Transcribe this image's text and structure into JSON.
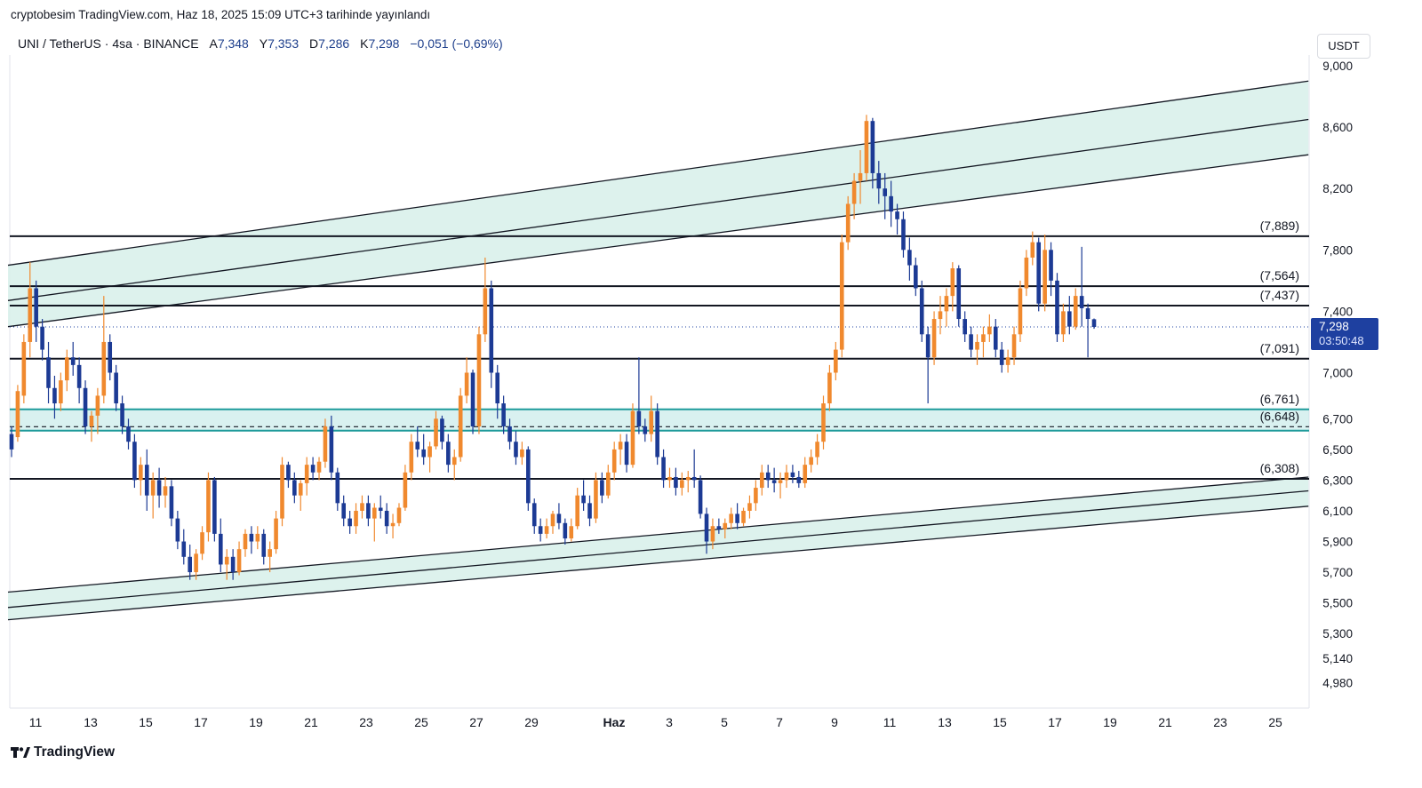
{
  "header": {
    "publish_line": "cryptobesim TradingView.com, Haz 18, 2025 15:09 UTC+3 tarihinde yayınlandı"
  },
  "legend": {
    "symbol": "UNI / TetherUS · 4sa · BINANCE",
    "open_label": "A",
    "open_value": "7,348",
    "high_label": "Y",
    "high_value": "7,353",
    "low_label": "D",
    "low_value": "7,286",
    "close_label": "K",
    "close_value": "7,298",
    "change": "−0,051 (−0,69%)"
  },
  "currency": "USDT",
  "footer": {
    "brand": "TradingView",
    "logo_icon": "tradingview-logo-icon"
  },
  "colors": {
    "up": "#f0892e",
    "down": "#1c3a94",
    "channel_fill": "#d7f0ea",
    "zone_fill": "#b9e6e3",
    "zone_border": "#1d9a9a",
    "price_tag": "#1e40a0"
  },
  "chart_data": {
    "type": "candlestick",
    "title": "UNI / TetherUS 4h",
    "ylim": [
      4.9,
      9.05
    ],
    "y_axis_labels": [
      "9,000",
      "8,600",
      "8,200",
      "7,800",
      "7,400",
      "7,000",
      "6,700",
      "6,500",
      "6,300",
      "6,100",
      "5,900",
      "5,700",
      "5,500",
      "5,300",
      "5,140",
      "4,980"
    ],
    "y_axis_values": [
      9.0,
      8.6,
      8.2,
      7.8,
      7.4,
      7.0,
      6.7,
      6.5,
      6.3,
      6.1,
      5.9,
      5.7,
      5.5,
      5.3,
      5.14,
      4.98
    ],
    "x_ticks": [
      {
        "day": 11,
        "label": "11"
      },
      {
        "day": 13,
        "label": "13"
      },
      {
        "day": 15,
        "label": "15"
      },
      {
        "day": 17,
        "label": "17"
      },
      {
        "day": 19,
        "label": "19"
      },
      {
        "day": 21,
        "label": "21"
      },
      {
        "day": 23,
        "label": "23"
      },
      {
        "day": 25,
        "label": "25"
      },
      {
        "day": 27,
        "label": "27"
      },
      {
        "day": 29,
        "label": "29"
      },
      {
        "day": 32,
        "label": "Haz",
        "bold": true
      },
      {
        "day": 34,
        "label": "3"
      },
      {
        "day": 36,
        "label": "5"
      },
      {
        "day": 38,
        "label": "7"
      },
      {
        "day": 40,
        "label": "9"
      },
      {
        "day": 42,
        "label": "11"
      },
      {
        "day": 44,
        "label": "13"
      },
      {
        "day": 46,
        "label": "15"
      },
      {
        "day": 48,
        "label": "17"
      },
      {
        "day": 50,
        "label": "19"
      },
      {
        "day": 52,
        "label": "21"
      },
      {
        "day": 54,
        "label": "23"
      },
      {
        "day": 56,
        "label": "25"
      }
    ],
    "horizontal_levels": [
      {
        "value": 7.889,
        "label": "(7,889)"
      },
      {
        "value": 7.564,
        "label": "(7,564)"
      },
      {
        "value": 7.437,
        "label": "(7,437)"
      },
      {
        "value": 7.091,
        "label": "(7,091)"
      },
      {
        "value": 6.761,
        "label": "(6,761)",
        "zone_top": true
      },
      {
        "value": 6.648,
        "label": "(6,648)",
        "dashed": true
      },
      {
        "value": 6.308,
        "label": "(6,308)"
      }
    ],
    "support_zone": {
      "top": 6.761,
      "bottom": 6.622
    },
    "upper_channel": {
      "top": [
        {
          "day": 10,
          "value": 7.7
        },
        {
          "day": 57.2,
          "value": 8.9
        }
      ],
      "middle": [
        {
          "day": 10,
          "value": 7.47
        },
        {
          "day": 57.2,
          "value": 8.65
        }
      ],
      "bottom": [
        {
          "day": 10,
          "value": 7.3
        },
        {
          "day": 57.2,
          "value": 8.42
        }
      ]
    },
    "lower_channel": {
      "top": [
        {
          "day": 10,
          "value": 5.57
        },
        {
          "day": 57.2,
          "value": 6.32
        }
      ],
      "middle": [
        {
          "day": 10,
          "value": 5.47
        },
        {
          "day": 57.2,
          "value": 6.23
        }
      ],
      "bottom": [
        {
          "day": 10,
          "value": 5.39
        },
        {
          "day": 57.2,
          "value": 6.13
        }
      ]
    },
    "last_price": {
      "value": 7.298,
      "label": "7,298",
      "countdown": "03:50:48"
    },
    "ohlc_4h": [
      [
        6.6,
        6.65,
        6.45,
        6.5
      ],
      [
        6.58,
        6.92,
        6.55,
        6.88
      ],
      [
        6.85,
        7.25,
        6.8,
        7.2
      ],
      [
        7.2,
        7.72,
        7.1,
        7.55
      ],
      [
        7.55,
        7.6,
        7.2,
        7.3
      ],
      [
        7.3,
        7.35,
        7.08,
        7.15
      ],
      [
        7.1,
        7.2,
        6.8,
        6.9
      ],
      [
        6.9,
        6.98,
        6.7,
        6.8
      ],
      [
        6.8,
        7.0,
        6.75,
        6.95
      ],
      [
        6.95,
        7.15,
        6.88,
        7.1
      ],
      [
        7.1,
        7.2,
        6.98,
        7.05
      ],
      [
        7.05,
        7.1,
        6.8,
        6.9
      ],
      [
        6.9,
        6.95,
        6.6,
        6.65
      ],
      [
        6.65,
        6.75,
        6.55,
        6.72
      ],
      [
        6.72,
        6.9,
        6.6,
        6.85
      ],
      [
        6.85,
        7.5,
        6.8,
        7.2
      ],
      [
        7.2,
        7.25,
        6.95,
        7.0
      ],
      [
        7.0,
        7.05,
        6.75,
        6.8
      ],
      [
        6.8,
        6.85,
        6.6,
        6.65
      ],
      [
        6.65,
        6.7,
        6.5,
        6.55
      ],
      [
        6.55,
        6.6,
        6.25,
        6.3
      ],
      [
        6.3,
        6.45,
        6.2,
        6.4
      ],
      [
        6.4,
        6.5,
        6.1,
        6.2
      ],
      [
        6.2,
        6.35,
        6.05,
        6.3
      ],
      [
        6.3,
        6.38,
        6.12,
        6.2
      ],
      [
        6.2,
        6.32,
        6.12,
        6.26
      ],
      [
        6.26,
        6.3,
        6.0,
        6.05
      ],
      [
        6.05,
        6.1,
        5.85,
        5.9
      ],
      [
        5.9,
        5.98,
        5.75,
        5.8
      ],
      [
        5.8,
        5.88,
        5.65,
        5.7
      ],
      [
        5.7,
        5.85,
        5.65,
        5.82
      ],
      [
        5.82,
        6.0,
        5.78,
        5.96
      ],
      [
        5.96,
        6.35,
        5.9,
        6.3
      ],
      [
        6.3,
        6.32,
        5.9,
        5.95
      ],
      [
        5.95,
        6.05,
        5.7,
        5.75
      ],
      [
        5.75,
        5.85,
        5.65,
        5.8
      ],
      [
        5.8,
        5.85,
        5.65,
        5.7
      ],
      [
        5.7,
        5.9,
        5.68,
        5.85
      ],
      [
        5.85,
        5.98,
        5.8,
        5.95
      ],
      [
        5.95,
        6.0,
        5.82,
        5.9
      ],
      [
        5.9,
        6.0,
        5.85,
        5.95
      ],
      [
        5.95,
        5.98,
        5.75,
        5.8
      ],
      [
        5.8,
        5.9,
        5.7,
        5.85
      ],
      [
        5.85,
        6.1,
        5.82,
        6.05
      ],
      [
        6.05,
        6.45,
        6.0,
        6.4
      ],
      [
        6.4,
        6.42,
        6.25,
        6.3
      ],
      [
        6.3,
        6.35,
        6.15,
        6.2
      ],
      [
        6.2,
        6.3,
        6.1,
        6.28
      ],
      [
        6.28,
        6.45,
        6.2,
        6.4
      ],
      [
        6.4,
        6.45,
        6.3,
        6.35
      ],
      [
        6.35,
        6.45,
        6.3,
        6.42
      ],
      [
        6.42,
        6.7,
        6.38,
        6.65
      ],
      [
        6.65,
        6.72,
        6.3,
        6.35
      ],
      [
        6.35,
        6.38,
        6.1,
        6.15
      ],
      [
        6.15,
        6.2,
        6.0,
        6.05
      ],
      [
        6.05,
        6.1,
        5.95,
        6.0
      ],
      [
        6.0,
        6.15,
        5.95,
        6.1
      ],
      [
        6.1,
        6.2,
        6.05,
        6.15
      ],
      [
        6.15,
        6.2,
        6.0,
        6.05
      ],
      [
        6.05,
        6.15,
        5.9,
        6.12
      ],
      [
        6.12,
        6.2,
        6.05,
        6.1
      ],
      [
        6.1,
        6.15,
        5.95,
        6.0
      ],
      [
        6.0,
        6.08,
        5.92,
        6.02
      ],
      [
        6.02,
        6.15,
        6.0,
        6.12
      ],
      [
        6.12,
        6.4,
        6.1,
        6.35
      ],
      [
        6.35,
        6.6,
        6.3,
        6.55
      ],
      [
        6.55,
        6.65,
        6.45,
        6.5
      ],
      [
        6.5,
        6.6,
        6.4,
        6.45
      ],
      [
        6.45,
        6.55,
        6.35,
        6.52
      ],
      [
        6.52,
        6.75,
        6.5,
        6.7
      ],
      [
        6.7,
        6.72,
        6.5,
        6.55
      ],
      [
        6.55,
        6.6,
        6.35,
        6.4
      ],
      [
        6.4,
        6.5,
        6.3,
        6.45
      ],
      [
        6.45,
        6.9,
        6.42,
        6.85
      ],
      [
        6.85,
        7.1,
        6.8,
        7.0
      ],
      [
        7.0,
        7.02,
        6.6,
        6.65
      ],
      [
        6.65,
        7.3,
        6.6,
        7.25
      ],
      [
        7.25,
        7.75,
        7.2,
        7.55
      ],
      [
        7.55,
        7.6,
        6.9,
        7.0
      ],
      [
        7.0,
        7.05,
        6.7,
        6.8
      ],
      [
        6.8,
        6.85,
        6.6,
        6.65
      ],
      [
        6.65,
        6.7,
        6.5,
        6.55
      ],
      [
        6.55,
        6.62,
        6.4,
        6.45
      ],
      [
        6.45,
        6.55,
        6.4,
        6.5
      ],
      [
        6.5,
        6.52,
        6.1,
        6.15
      ],
      [
        6.15,
        6.18,
        5.95,
        6.0
      ],
      [
        6.0,
        6.05,
        5.9,
        5.95
      ],
      [
        5.95,
        6.05,
        5.92,
        6.0
      ],
      [
        6.0,
        6.1,
        5.95,
        6.08
      ],
      [
        6.08,
        6.15,
        5.98,
        6.02
      ],
      [
        6.02,
        6.05,
        5.88,
        5.92
      ],
      [
        5.92,
        6.05,
        5.9,
        6.0
      ],
      [
        6.0,
        6.25,
        5.98,
        6.2
      ],
      [
        6.2,
        6.3,
        6.1,
        6.15
      ],
      [
        6.15,
        6.2,
        6.0,
        6.05
      ],
      [
        6.05,
        6.35,
        6.02,
        6.3
      ],
      [
        6.3,
        6.35,
        6.15,
        6.2
      ],
      [
        6.2,
        6.4,
        6.18,
        6.35
      ],
      [
        6.35,
        6.55,
        6.3,
        6.5
      ],
      [
        6.5,
        6.6,
        6.4,
        6.55
      ],
      [
        6.55,
        6.6,
        6.35,
        6.4
      ],
      [
        6.4,
        6.8,
        6.38,
        6.75
      ],
      [
        6.75,
        7.1,
        6.6,
        6.65
      ],
      [
        6.65,
        6.7,
        6.55,
        6.6
      ],
      [
        6.6,
        6.85,
        6.55,
        6.75
      ],
      [
        6.75,
        6.8,
        6.4,
        6.45
      ],
      [
        6.45,
        6.5,
        6.25,
        6.3
      ],
      [
        6.3,
        6.38,
        6.25,
        6.32
      ],
      [
        6.32,
        6.38,
        6.2,
        6.25
      ],
      [
        6.25,
        6.35,
        6.2,
        6.3
      ],
      [
        6.3,
        6.36,
        6.22,
        6.32
      ],
      [
        6.32,
        6.5,
        6.25,
        6.3
      ],
      [
        6.3,
        6.33,
        6.05,
        6.08
      ],
      [
        6.08,
        6.12,
        5.82,
        5.9
      ],
      [
        5.9,
        6.05,
        5.85,
        6.0
      ],
      [
        6.0,
        6.05,
        5.95,
        5.98
      ],
      [
        5.98,
        6.05,
        5.92,
        6.02
      ],
      [
        6.02,
        6.12,
        5.98,
        6.08
      ],
      [
        6.08,
        6.15,
        5.98,
        6.02
      ],
      [
        6.02,
        6.12,
        6.0,
        6.1
      ],
      [
        6.1,
        6.2,
        6.05,
        6.15
      ],
      [
        6.15,
        6.3,
        6.1,
        6.25
      ],
      [
        6.25,
        6.4,
        6.2,
        6.35
      ],
      [
        6.35,
        6.4,
        6.25,
        6.3
      ],
      [
        6.3,
        6.38,
        6.22,
        6.28
      ],
      [
        6.28,
        6.35,
        6.18,
        6.3
      ],
      [
        6.3,
        6.4,
        6.25,
        6.35
      ],
      [
        6.35,
        6.4,
        6.28,
        6.32
      ],
      [
        6.32,
        6.36,
        6.25,
        6.28
      ],
      [
        6.28,
        6.45,
        6.25,
        6.4
      ],
      [
        6.4,
        6.5,
        6.35,
        6.45
      ],
      [
        6.45,
        6.6,
        6.4,
        6.55
      ],
      [
        6.55,
        6.85,
        6.5,
        6.8
      ],
      [
        6.8,
        7.05,
        6.75,
        7.0
      ],
      [
        7.0,
        7.2,
        6.95,
        7.15
      ],
      [
        7.15,
        7.9,
        7.1,
        7.85
      ],
      [
        7.85,
        8.15,
        7.8,
        8.1
      ],
      [
        8.1,
        8.3,
        8.0,
        8.25
      ],
      [
        8.25,
        8.45,
        8.1,
        8.3
      ],
      [
        8.3,
        8.68,
        8.25,
        8.64
      ],
      [
        8.64,
        8.66,
        8.2,
        8.3
      ],
      [
        8.3,
        8.38,
        8.1,
        8.2
      ],
      [
        8.2,
        8.3,
        8.0,
        8.15
      ],
      [
        8.15,
        8.25,
        7.95,
        8.05
      ],
      [
        8.05,
        8.1,
        7.9,
        8.0
      ],
      [
        8.0,
        8.05,
        7.75,
        7.8
      ],
      [
        7.8,
        7.88,
        7.6,
        7.7
      ],
      [
        7.7,
        7.75,
        7.5,
        7.55
      ],
      [
        7.55,
        7.6,
        7.2,
        7.25
      ],
      [
        7.25,
        7.3,
        6.8,
        7.1
      ],
      [
        7.1,
        7.4,
        7.05,
        7.35
      ],
      [
        7.35,
        7.5,
        7.25,
        7.4
      ],
      [
        7.4,
        7.55,
        7.3,
        7.5
      ],
      [
        7.5,
        7.72,
        7.4,
        7.68
      ],
      [
        7.68,
        7.7,
        7.3,
        7.35
      ],
      [
        7.35,
        7.4,
        7.2,
        7.25
      ],
      [
        7.25,
        7.3,
        7.1,
        7.15
      ],
      [
        7.15,
        7.25,
        7.05,
        7.2
      ],
      [
        7.2,
        7.3,
        7.1,
        7.25
      ],
      [
        7.25,
        7.38,
        7.2,
        7.3
      ],
      [
        7.3,
        7.35,
        7.1,
        7.15
      ],
      [
        7.15,
        7.2,
        7.0,
        7.05
      ],
      [
        7.05,
        7.15,
        7.0,
        7.1
      ],
      [
        7.1,
        7.3,
        7.05,
        7.25
      ],
      [
        7.25,
        7.6,
        7.2,
        7.55
      ],
      [
        7.55,
        7.8,
        7.5,
        7.75
      ],
      [
        7.75,
        7.92,
        7.7,
        7.85
      ],
      [
        7.85,
        7.88,
        7.4,
        7.45
      ],
      [
        7.45,
        7.9,
        7.4,
        7.8
      ],
      [
        7.8,
        7.85,
        7.5,
        7.6
      ],
      [
        7.6,
        7.65,
        7.2,
        7.25
      ],
      [
        7.25,
        7.45,
        7.2,
        7.4
      ],
      [
        7.4,
        7.5,
        7.25,
        7.3
      ],
      [
        7.3,
        7.55,
        7.28,
        7.5
      ],
      [
        7.5,
        7.82,
        7.3,
        7.42
      ],
      [
        7.42,
        7.45,
        7.1,
        7.35
      ],
      [
        7.348,
        7.353,
        7.286,
        7.298
      ]
    ]
  }
}
